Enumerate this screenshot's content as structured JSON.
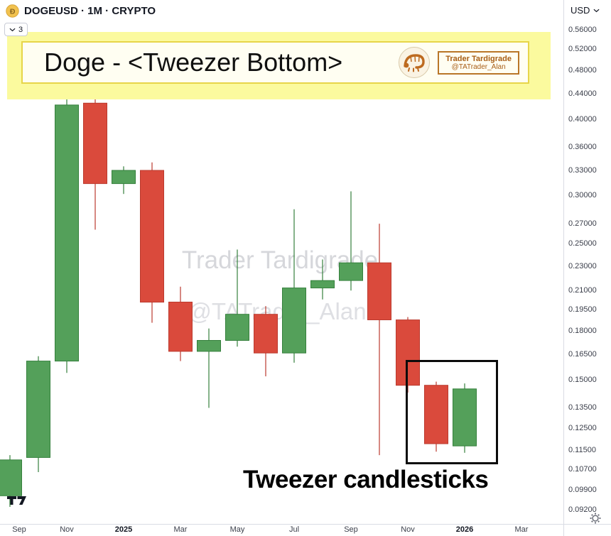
{
  "header": {
    "symbol_title": "DOGEUSD · 1M · CRYPTO",
    "currency_label": "USD",
    "legend_badge_count": "3"
  },
  "banner": {
    "title": "Doge - <Tweezer Bottom>",
    "credit_line1": "Trader Tardigrade",
    "credit_line2": "@TATrader_Alan"
  },
  "watermark": {
    "line1": "Trader Tardigrade",
    "line2": "@TATrader_Alan"
  },
  "annotation": {
    "tweezer_label": "Tweezer candlesticks"
  },
  "chart_data": {
    "type": "candlestick",
    "symbol": "DOGEUSD",
    "interval": "1M",
    "market": "CRYPTO",
    "scale": "log",
    "title": "Doge - <Tweezer Bottom>",
    "price_axis": {
      "side": "right",
      "ticks": [
        "0.56000",
        "0.52000",
        "0.48000",
        "0.44000",
        "0.40000",
        "0.36000",
        "0.33000",
        "0.30000",
        "0.27000",
        "0.25000",
        "0.23000",
        "0.21000",
        "0.19500",
        "0.18000",
        "0.16500",
        "0.15000",
        "0.13500",
        "0.12500",
        "0.11500",
        "0.10700",
        "0.09900",
        "0.09200"
      ]
    },
    "time_axis": {
      "labels": [
        {
          "label": "Sep",
          "slot": 0,
          "bold": false
        },
        {
          "label": "Nov",
          "slot": 2,
          "bold": false
        },
        {
          "label": "2025",
          "slot": 4,
          "bold": true
        },
        {
          "label": "Mar",
          "slot": 6,
          "bold": false
        },
        {
          "label": "May",
          "slot": 8,
          "bold": false
        },
        {
          "label": "Jul",
          "slot": 10,
          "bold": false
        },
        {
          "label": "Sep",
          "slot": 12,
          "bold": false
        },
        {
          "label": "Nov",
          "slot": 14,
          "bold": false
        },
        {
          "label": "2026",
          "slot": 16,
          "bold": true
        },
        {
          "label": "Mar",
          "slot": 18,
          "bold": false
        }
      ]
    },
    "candles": [
      {
        "month": "Sep 2024",
        "o": 0.097,
        "h": 0.113,
        "l": 0.093,
        "c": 0.111
      },
      {
        "month": "Oct 2024",
        "o": 0.112,
        "h": 0.164,
        "l": 0.106,
        "c": 0.161
      },
      {
        "month": "Nov 2024",
        "o": 0.161,
        "h": 0.495,
        "l": 0.154,
        "c": 0.422
      },
      {
        "month": "Dec 2024",
        "o": 0.425,
        "h": 0.457,
        "l": 0.264,
        "c": 0.314
      },
      {
        "month": "Jan 2025",
        "o": 0.314,
        "h": 0.335,
        "l": 0.302,
        "c": 0.33
      },
      {
        "month": "Feb 2025",
        "o": 0.33,
        "h": 0.34,
        "l": 0.186,
        "c": 0.201
      },
      {
        "month": "Mar 2025",
        "o": 0.201,
        "h": 0.213,
        "l": 0.161,
        "c": 0.167
      },
      {
        "month": "Apr 2025",
        "o": 0.167,
        "h": 0.182,
        "l": 0.135,
        "c": 0.174
      },
      {
        "month": "May 2025",
        "o": 0.174,
        "h": 0.245,
        "l": 0.17,
        "c": 0.192
      },
      {
        "month": "Jun 2025",
        "o": 0.192,
        "h": 0.198,
        "l": 0.152,
        "c": 0.166
      },
      {
        "month": "Jul 2025",
        "o": 0.166,
        "h": 0.285,
        "l": 0.16,
        "c": 0.212
      },
      {
        "month": "Aug 2025",
        "o": 0.212,
        "h": 0.236,
        "l": 0.203,
        "c": 0.218
      },
      {
        "month": "Sep 2025",
        "o": 0.218,
        "h": 0.305,
        "l": 0.21,
        "c": 0.233
      },
      {
        "month": "Oct 2025",
        "o": 0.233,
        "h": 0.27,
        "l": 0.113,
        "c": 0.188
      },
      {
        "month": "Nov 2025",
        "o": 0.188,
        "h": 0.19,
        "l": 0.143,
        "c": 0.147
      },
      {
        "month": "Dec 2025",
        "o": 0.147,
        "h": 0.149,
        "l": 0.1145,
        "c": 0.118
      },
      {
        "month": "Jan 2026",
        "o": 0.117,
        "h": 0.148,
        "l": 0.114,
        "c": 0.145
      }
    ],
    "colors": {
      "up": "#54a05a",
      "up_border": "#35803c",
      "down": "#da4a3c",
      "down_border": "#bb3a2e"
    },
    "highlight": {
      "label": "Tweezer candlesticks",
      "months": [
        "Dec 2025",
        "Jan 2026"
      ]
    }
  }
}
